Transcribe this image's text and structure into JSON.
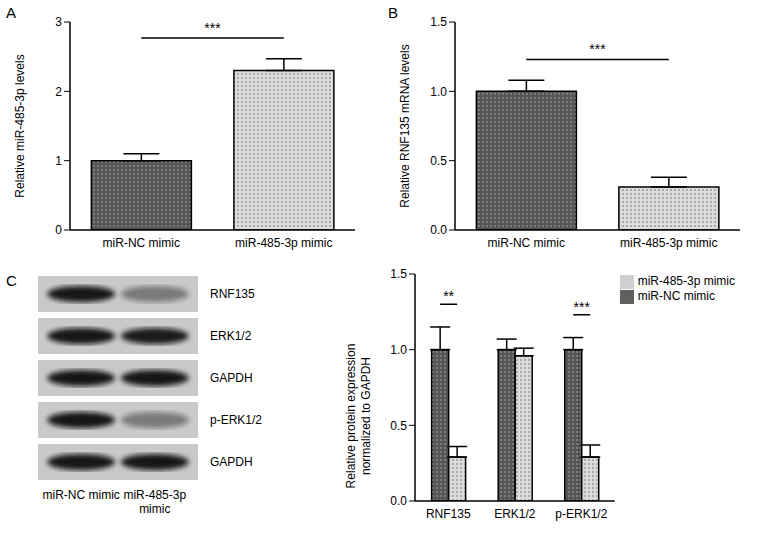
{
  "chart_data": [
    {
      "panel": "A",
      "type": "bar",
      "categories": [
        "miR-NC mimic",
        "miR-485-3p mimic"
      ],
      "values": [
        1.0,
        2.3
      ],
      "errors": [
        0.1,
        0.17
      ],
      "colors": [
        "#555555",
        "#dcdcdc"
      ],
      "ylabel": "Relative miR-485-3p levels",
      "ylim": [
        0,
        3
      ],
      "yticks": [
        0,
        1,
        2,
        3
      ],
      "annotations": [
        {
          "text": "***",
          "from": "miR-NC mimic",
          "to": "miR-485-3p mimic"
        }
      ]
    },
    {
      "panel": "B",
      "type": "bar",
      "categories": [
        "miR-NC mimic",
        "miR-485-3p mimic"
      ],
      "values": [
        1.0,
        0.31
      ],
      "errors": [
        0.08,
        0.07
      ],
      "colors": [
        "#555555",
        "#dcdcdc"
      ],
      "ylabel": "Relative RNF135 mRNA levels",
      "ylim": [
        0,
        1.5
      ],
      "yticks": [
        {
          "value": 0,
          "label": "0.0"
        },
        {
          "value": 0.5,
          "label": "0.5"
        },
        {
          "value": 1,
          "label": "1.0"
        },
        {
          "value": 1.5,
          "label": "1.5"
        }
      ],
      "annotations": [
        {
          "text": "***",
          "from": "miR-NC mimic",
          "to": "miR-485-3p mimic"
        }
      ]
    },
    {
      "panel": "C",
      "type": "bar",
      "categories": [
        "RNF135",
        "ERK1/2",
        "p-ERK1/2"
      ],
      "series": [
        {
          "name": "miR-NC mimic",
          "color": "#555555",
          "values": [
            1.0,
            1.0,
            1.0
          ],
          "errors": [
            0.15,
            0.07,
            0.08
          ]
        },
        {
          "name": "miR-485-3p mimic",
          "color": "#dcdcdc",
          "values": [
            0.29,
            0.96,
            0.29
          ],
          "errors": [
            0.07,
            0.05,
            0.08
          ]
        }
      ],
      "ylabel": "Relative protein expression normalized to GAPDH",
      "ylim": [
        0,
        1.5
      ],
      "yticks": [
        {
          "value": 0,
          "label": "0.0"
        },
        {
          "value": 0.5,
          "label": "0.5"
        },
        {
          "value": 1,
          "label": "1.0"
        },
        {
          "value": 1.5,
          "label": "1.5"
        }
      ],
      "legend": "upper right",
      "annotations": [
        {
          "text": "**",
          "category": "RNF135"
        },
        {
          "text": "***",
          "category": "p-ERK1/2"
        }
      ]
    }
  ],
  "blot": {
    "panel": "C",
    "rows": [
      "RNF135",
      "ERK1/2",
      "GAPDH",
      "p-ERK1/2",
      "GAPDH"
    ],
    "lanes": [
      "miR-NC mimic",
      "miR-485-3p mimic"
    ]
  }
}
